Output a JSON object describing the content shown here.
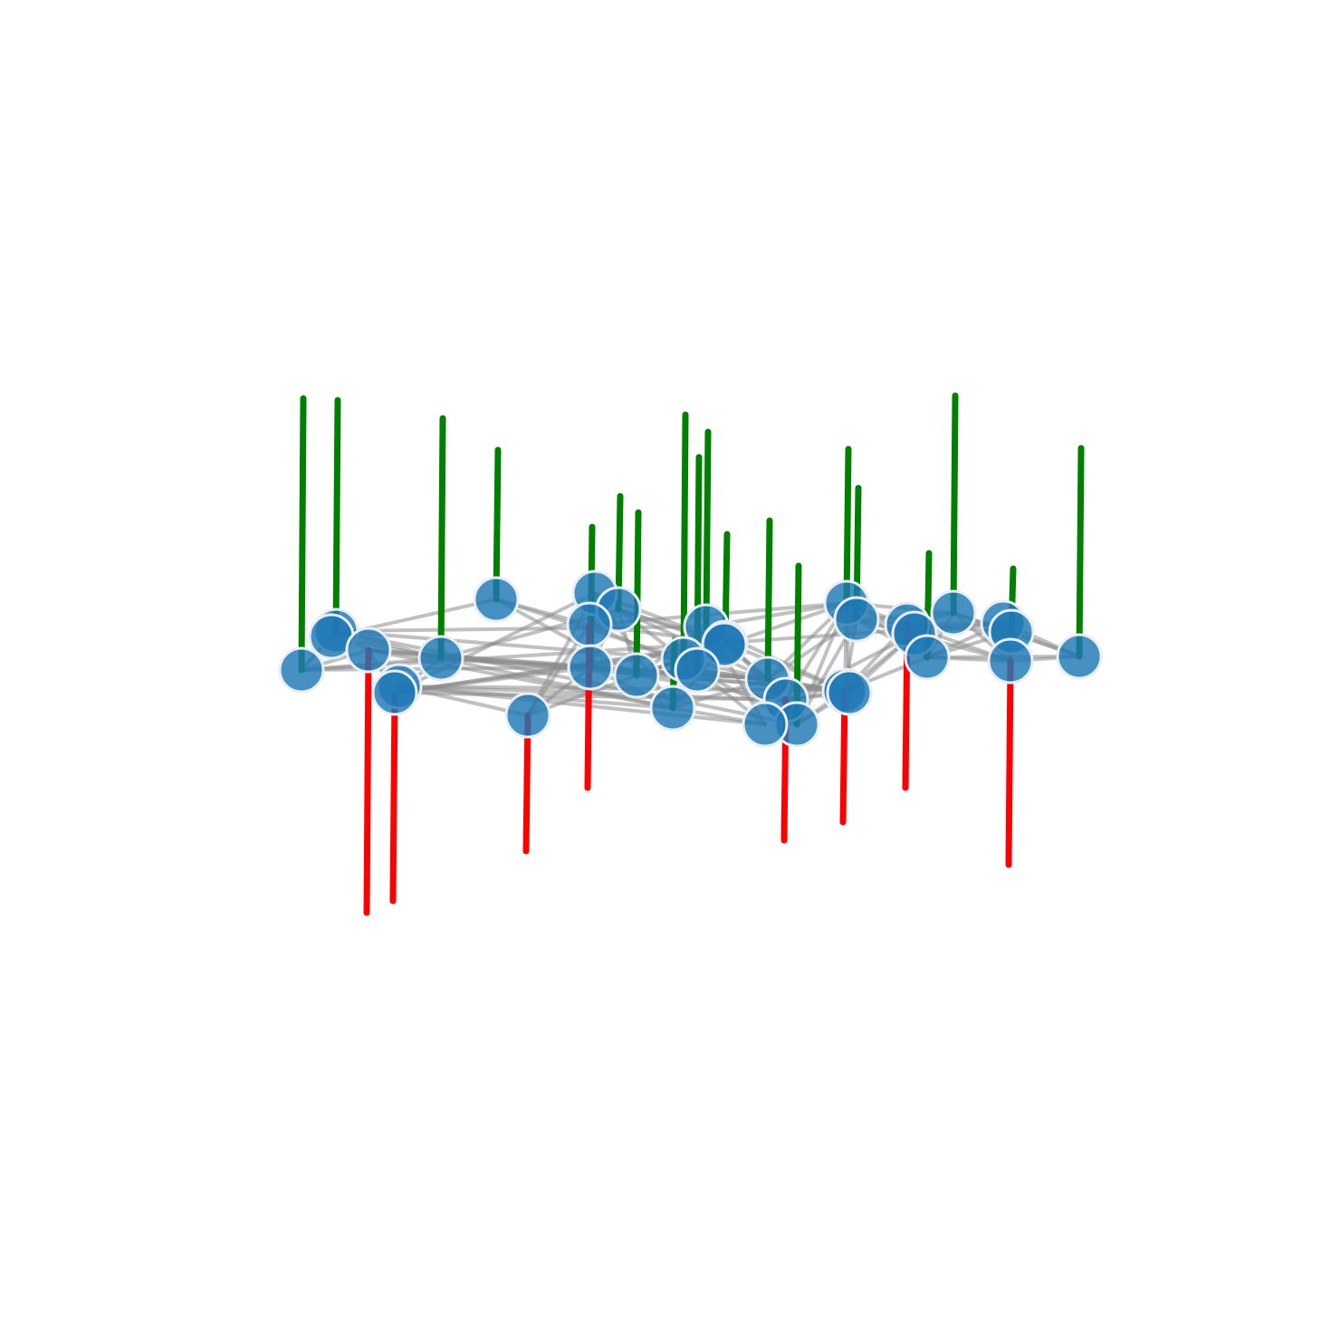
{
  "colors": {
    "background": "#ffffff",
    "node_fill": "#1f77b4",
    "node_stroke": "#e8eef6",
    "edge": "#8c8c8c",
    "stem_positive": "#008000",
    "stem_negative": "#ff0000"
  },
  "diagram": {
    "type": "network-with-node-stems",
    "nodes": [
      {
        "id": "n1",
        "stem": "up",
        "stem_length": 300
      },
      {
        "id": "n2",
        "stem": "up",
        "stem_length": 255
      },
      {
        "id": "n3",
        "stem": "down",
        "stem_length": 290
      },
      {
        "id": "n4",
        "stem": "down",
        "stem_length": 230
      },
      {
        "id": "n5",
        "stem": "up",
        "stem_length": 265
      },
      {
        "id": "n6",
        "stem": "up",
        "stem_length": 165
      },
      {
        "id": "n7",
        "stem": "down",
        "stem_length": 150
      },
      {
        "id": "n8",
        "stem": "up",
        "stem_length": 155
      },
      {
        "id": "n9",
        "stem": "down",
        "stem_length": 180
      },
      {
        "id": "n10",
        "stem": "up",
        "stem_length": 125
      },
      {
        "id": "n11",
        "stem": "up",
        "stem_length": 180
      },
      {
        "id": "n12",
        "stem": "up",
        "stem_length": 270
      },
      {
        "id": "n13",
        "stem": "up",
        "stem_length": 235
      },
      {
        "id": "n14",
        "stem": "up",
        "stem_length": 215
      },
      {
        "id": "n15",
        "stem": "up",
        "stem_length": 75
      },
      {
        "id": "n16",
        "stem": "up",
        "stem_length": 120
      },
      {
        "id": "n17",
        "stem": "up",
        "stem_length": 175
      },
      {
        "id": "n18",
        "stem": "up",
        "stem_length": 175
      },
      {
        "id": "n19",
        "stem": "down",
        "stem_length": 155
      },
      {
        "id": "n20",
        "stem": "up",
        "stem_length": 170
      },
      {
        "id": "n21",
        "stem": "down",
        "stem_length": 145
      },
      {
        "id": "n22",
        "stem": "up",
        "stem_length": 145
      },
      {
        "id": "n23",
        "stem": "down",
        "stem_length": 180
      },
      {
        "id": "n24",
        "stem": "up",
        "stem_length": 240
      },
      {
        "id": "n25",
        "stem": "up",
        "stem_length": 115
      },
      {
        "id": "n26",
        "stem": "down",
        "stem_length": 225
      },
      {
        "id": "n27",
        "stem": "up",
        "stem_length": 230
      },
      {
        "id": "n28",
        "stem": "up",
        "stem_length": 70
      },
      {
        "id": "n29",
        "stem": "none",
        "stem_length": 0
      },
      {
        "id": "n30",
        "stem": "none",
        "stem_length": 0
      },
      {
        "id": "n31",
        "stem": "none",
        "stem_length": 0
      },
      {
        "id": "n32",
        "stem": "none",
        "stem_length": 0
      },
      {
        "id": "n33",
        "stem": "none",
        "stem_length": 0
      },
      {
        "id": "n34",
        "stem": "none",
        "stem_length": 0
      },
      {
        "id": "n35",
        "stem": "none",
        "stem_length": 0
      },
      {
        "id": "n36",
        "stem": "none",
        "stem_length": 0
      }
    ],
    "edges": [
      [
        "n1",
        "n2"
      ],
      [
        "n1",
        "n3"
      ],
      [
        "n1",
        "n5"
      ],
      [
        "n1",
        "n8"
      ],
      [
        "n1",
        "n29"
      ],
      [
        "n1",
        "n16"
      ],
      [
        "n2",
        "n3"
      ],
      [
        "n2",
        "n5"
      ],
      [
        "n2",
        "n29"
      ],
      [
        "n2",
        "n14"
      ],
      [
        "n2",
        "n12"
      ],
      [
        "n2",
        "n18"
      ],
      [
        "n3",
        "n4"
      ],
      [
        "n3",
        "n5"
      ],
      [
        "n3",
        "n8"
      ],
      [
        "n3",
        "n15"
      ],
      [
        "n3",
        "n17"
      ],
      [
        "n4",
        "n5"
      ],
      [
        "n4",
        "n8"
      ],
      [
        "n4",
        "n16"
      ],
      [
        "n4",
        "n19"
      ],
      [
        "n4",
        "n30"
      ],
      [
        "n4",
        "n31"
      ],
      [
        "n5",
        "n8"
      ],
      [
        "n5",
        "n10"
      ],
      [
        "n5",
        "n15"
      ],
      [
        "n5",
        "n17"
      ],
      [
        "n5",
        "n29"
      ],
      [
        "n5",
        "n21"
      ],
      [
        "n6",
        "n9"
      ],
      [
        "n6",
        "n11"
      ],
      [
        "n6",
        "n29"
      ],
      [
        "n6",
        "n12"
      ],
      [
        "n7",
        "n9"
      ],
      [
        "n7",
        "n30"
      ],
      [
        "n7",
        "n16"
      ],
      [
        "n7",
        "n8"
      ],
      [
        "n7",
        "n36"
      ],
      [
        "n8",
        "n9"
      ],
      [
        "n8",
        "n10"
      ],
      [
        "n8",
        "n16"
      ],
      [
        "n8",
        "n17"
      ],
      [
        "n8",
        "n15"
      ],
      [
        "n8",
        "n30"
      ],
      [
        "n8",
        "n19"
      ],
      [
        "n8",
        "n33"
      ],
      [
        "n9",
        "n10"
      ],
      [
        "n9",
        "n16"
      ],
      [
        "n9",
        "n30"
      ],
      [
        "n9",
        "n13"
      ],
      [
        "n9",
        "n20"
      ],
      [
        "n10",
        "n11"
      ],
      [
        "n10",
        "n12"
      ],
      [
        "n10",
        "n16"
      ],
      [
        "n10",
        "n17"
      ],
      [
        "n10",
        "n31"
      ],
      [
        "n11",
        "n12"
      ],
      [
        "n11",
        "n13"
      ],
      [
        "n11",
        "n14"
      ],
      [
        "n11",
        "n31"
      ],
      [
        "n11",
        "n20"
      ],
      [
        "n12",
        "n13"
      ],
      [
        "n12",
        "n14"
      ],
      [
        "n12",
        "n31"
      ],
      [
        "n12",
        "n17"
      ],
      [
        "n13",
        "n14"
      ],
      [
        "n13",
        "n17"
      ],
      [
        "n13",
        "n32"
      ],
      [
        "n13",
        "n18"
      ],
      [
        "n13",
        "n33"
      ],
      [
        "n14",
        "n17"
      ],
      [
        "n14",
        "n32"
      ],
      [
        "n14",
        "n15"
      ],
      [
        "n14",
        "n20"
      ],
      [
        "n14",
        "n21"
      ],
      [
        "n15",
        "n16"
      ],
      [
        "n15",
        "n17"
      ],
      [
        "n15",
        "n30"
      ],
      [
        "n15",
        "n32"
      ],
      [
        "n15",
        "n36"
      ],
      [
        "n16",
        "n17"
      ],
      [
        "n16",
        "n30"
      ],
      [
        "n16",
        "n31"
      ],
      [
        "n16",
        "n19"
      ],
      [
        "n16",
        "n33"
      ],
      [
        "n16",
        "n35"
      ],
      [
        "n17",
        "n18"
      ],
      [
        "n17",
        "n19"
      ],
      [
        "n17",
        "n33"
      ],
      [
        "n17",
        "n20"
      ],
      [
        "n17",
        "n21"
      ],
      [
        "n17",
        "n22"
      ],
      [
        "n18",
        "n19"
      ],
      [
        "n18",
        "n20"
      ],
      [
        "n18",
        "n21"
      ],
      [
        "n18",
        "n22"
      ],
      [
        "n18",
        "n33"
      ],
      [
        "n19",
        "n20"
      ],
      [
        "n19",
        "n33"
      ],
      [
        "n19",
        "n34"
      ],
      [
        "n19",
        "n21"
      ],
      [
        "n20",
        "n21"
      ],
      [
        "n20",
        "n22"
      ],
      [
        "n20",
        "n33"
      ],
      [
        "n20",
        "n23"
      ],
      [
        "n20",
        "n24"
      ],
      [
        "n21",
        "n22"
      ],
      [
        "n21",
        "n23"
      ],
      [
        "n21",
        "n33"
      ],
      [
        "n21",
        "n34"
      ],
      [
        "n21",
        "n25"
      ],
      [
        "n22",
        "n23"
      ],
      [
        "n22",
        "n24"
      ],
      [
        "n22",
        "n25"
      ],
      [
        "n22",
        "n34"
      ],
      [
        "n22",
        "n26"
      ],
      [
        "n23",
        "n24"
      ],
      [
        "n23",
        "n25"
      ],
      [
        "n23",
        "n26"
      ],
      [
        "n23",
        "n28"
      ],
      [
        "n23",
        "n35"
      ],
      [
        "n24",
        "n25"
      ],
      [
        "n24",
        "n26"
      ],
      [
        "n24",
        "n27"
      ],
      [
        "n24",
        "n28"
      ],
      [
        "n25",
        "n26"
      ],
      [
        "n25",
        "n27"
      ],
      [
        "n25",
        "n35"
      ],
      [
        "n25",
        "n28"
      ],
      [
        "n26",
        "n27"
      ],
      [
        "n26",
        "n35"
      ],
      [
        "n26",
        "n28"
      ],
      [
        "n27",
        "n28"
      ],
      [
        "n27",
        "n35"
      ],
      [
        "n19",
        "n36"
      ],
      [
        "n21",
        "n36"
      ],
      [
        "n32",
        "n36"
      ],
      [
        "n33",
        "n34"
      ],
      [
        "n20",
        "n34"
      ],
      [
        "n34",
        "n35"
      ],
      [
        "n23",
        "n34"
      ]
    ]
  }
}
